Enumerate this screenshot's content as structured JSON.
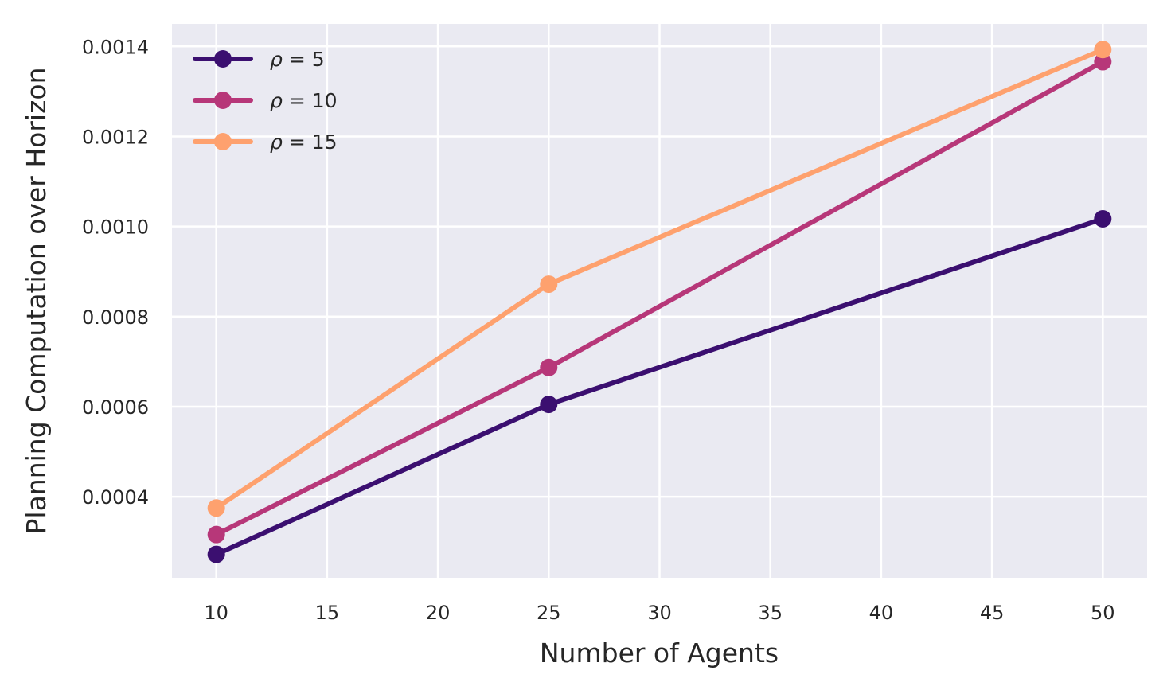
{
  "chart_data": {
    "type": "line",
    "title": "",
    "xlabel": "Number of Agents",
    "ylabel": "Planning Computation over Horizon",
    "x": [
      10,
      25,
      50
    ],
    "xlim": [
      8,
      52
    ],
    "ylim": [
      0.00022,
      0.00145
    ],
    "xticks": [
      10,
      15,
      20,
      25,
      30,
      35,
      40,
      45,
      50
    ],
    "xtick_labels": [
      "10",
      "15",
      "20",
      "25",
      "30",
      "35",
      "40",
      "45",
      "50"
    ],
    "yticks": [
      0.0004,
      0.0006,
      0.0008,
      0.001,
      0.0012,
      0.0014
    ],
    "ytick_labels": [
      "0.0004",
      "0.0006",
      "0.0008",
      "0.0010",
      "0.0012",
      "0.0014"
    ],
    "grid": true,
    "legend_position": "top-left",
    "background": "#eaeaf2",
    "series": [
      {
        "name": "ρ = 5",
        "legend_symbol": "ρ",
        "legend_rest": " = 5",
        "color": "#3b0f70",
        "values": [
          0.000272,
          0.000605,
          0.001017
        ]
      },
      {
        "name": "ρ = 10",
        "legend_symbol": "ρ",
        "legend_rest": " = 10",
        "color": "#b73779",
        "values": [
          0.000316,
          0.000687,
          0.001366
        ]
      },
      {
        "name": "ρ = 15",
        "legend_symbol": "ρ",
        "legend_rest": " = 15",
        "color": "#fea16e",
        "values": [
          0.000375,
          0.000872,
          0.001393
        ]
      }
    ]
  }
}
